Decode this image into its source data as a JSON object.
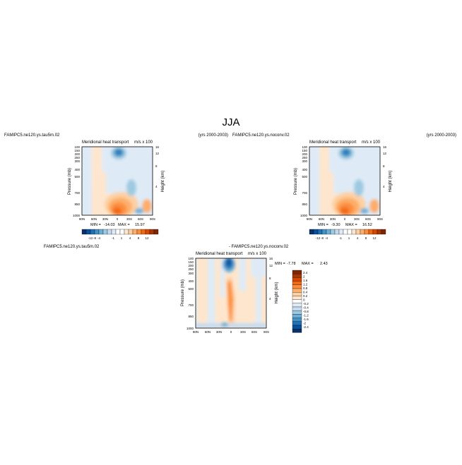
{
  "figure": {
    "title": "JJA"
  },
  "chart_data": [
    {
      "type": "heatmap",
      "case_label": "FAMIPC5.ne120.ys.tau5m.02",
      "years_label": "(yrs 2000-2003)",
      "title": "Meridional heat transport",
      "units": "m/s x 100",
      "xlabel": "",
      "ylabel": "Pressure (mb)",
      "ylabel_right": "Height (km)",
      "x_ticks": [
        "90N",
        "60N",
        "30N",
        "0",
        "30S",
        "60S",
        "90S"
      ],
      "y_ticks": [
        "100",
        "150",
        "200",
        "250",
        "300",
        "400",
        "500",
        "700",
        "850",
        "1000"
      ],
      "height_ticks": [
        "16",
        "12",
        "8",
        "4"
      ],
      "ylim": [
        1000,
        100
      ],
      "min_label": "MIN =",
      "min_value": "-14.03",
      "max_label": "MAX =",
      "max_value": "15.97",
      "colorbar_labels": [
        "-12",
        "-8",
        "-4",
        "-1",
        "1",
        "4",
        "8",
        "12"
      ]
    },
    {
      "type": "heatmap",
      "case_label": "FAMIPC5.ne120.ys.noconv.02",
      "years_label": "(yrs 2000-2003)",
      "title": "Meridional heat transport",
      "units": "m/s x 100",
      "xlabel": "",
      "ylabel": "Pressure (mb)",
      "ylabel_right": "Height (km)",
      "x_ticks": [
        "90N",
        "60N",
        "30N",
        "0",
        "30S",
        "60S",
        "90S"
      ],
      "y_ticks": [
        "100",
        "150",
        "200",
        "250",
        "300",
        "400",
        "500",
        "700",
        "850",
        "1000"
      ],
      "height_ticks": [
        "16",
        "12",
        "8",
        "4"
      ],
      "ylim": [
        1000,
        100
      ],
      "min_label": "MIN =",
      "min_value": "-9.30",
      "max_label": "MAX =",
      "max_value": "16.52",
      "colorbar_labels": [
        "-12",
        "-8",
        "-4",
        "-1",
        "1",
        "4",
        "8",
        "12"
      ]
    },
    {
      "type": "heatmap",
      "case_label": "FAMIPC5.ne120.ys.tau5m.02",
      "diff_label": "- FAMIPC5.ne120.ys.noconv.02",
      "title": "Meridional heat transport",
      "units": "m/s x 100",
      "xlabel": "",
      "ylabel": "Pressure (mb)",
      "ylabel_right": "Height (km)",
      "x_ticks": [
        "90N",
        "60N",
        "30N",
        "0",
        "30S",
        "60S",
        "90S"
      ],
      "y_ticks": [
        "100",
        "150",
        "200",
        "250",
        "300",
        "400",
        "500",
        "700",
        "850",
        "1000"
      ],
      "height_ticks": [
        "16",
        "12",
        "8",
        "4"
      ],
      "ylim": [
        1000,
        100
      ],
      "min_label": "MIN =",
      "min_value": "-7.78",
      "max_label": "MAX =",
      "max_value": "2.43",
      "colorbar_labels": [
        "2.4",
        "2",
        "1.6",
        "1.2",
        "0.8",
        "0.4",
        "0.2",
        "0",
        "-0.2",
        "-0.4",
        "-0.8",
        "-1.2",
        "-1.6",
        "-2",
        "-2.4"
      ]
    }
  ],
  "colors": {
    "neg": [
      "#08306b",
      "#08519c",
      "#2171b5",
      "#4292c6",
      "#6baed6",
      "#9ecae1",
      "#c6dbef",
      "#deebf7"
    ],
    "zero": "#ffffff",
    "pos": [
      "#fee6ce",
      "#fdd0a2",
      "#fdae6b",
      "#fd8d3c",
      "#f16913",
      "#d94801",
      "#a63603",
      "#7f2704"
    ]
  }
}
